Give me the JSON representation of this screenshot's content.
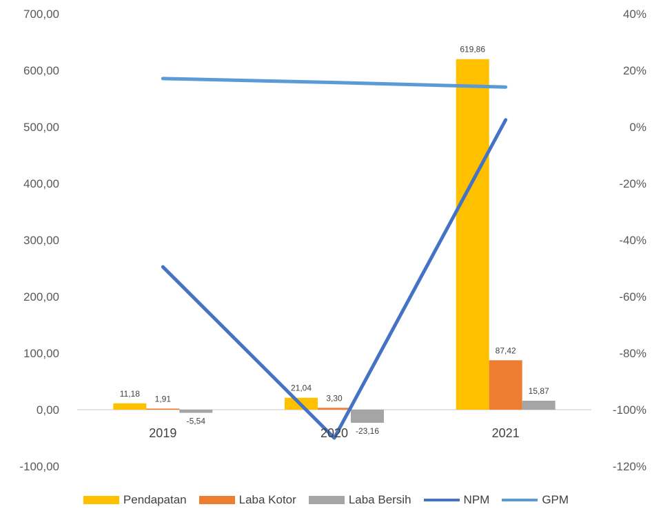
{
  "chart_data": {
    "type": "bar",
    "categories": [
      "2019",
      "2020",
      "2021"
    ],
    "series": [
      {
        "name": "Pendapatan",
        "kind": "bar",
        "axis": "left",
        "color": "#FFC000",
        "values": [
          11.18,
          21.04,
          619.86
        ],
        "labels": [
          "11,18",
          "21,04",
          "619,86"
        ]
      },
      {
        "name": "Laba Kotor",
        "kind": "bar",
        "axis": "left",
        "color": "#ED7D31",
        "values": [
          1.91,
          3.3,
          87.42
        ],
        "labels": [
          "1,91",
          "3,30",
          "87,42"
        ]
      },
      {
        "name": "Laba Bersih",
        "kind": "bar",
        "axis": "left",
        "color": "#A5A5A5",
        "values": [
          -5.54,
          -23.16,
          15.87
        ],
        "labels": [
          "-5,54",
          "-23,16",
          "15,87"
        ]
      },
      {
        "name": "NPM",
        "kind": "line",
        "axis": "right",
        "color": "#4472C4",
        "values": [
          -0.495,
          -1.1,
          0.025
        ]
      },
      {
        "name": "GPM",
        "kind": "line",
        "axis": "right",
        "color": "#5B9BD5",
        "values": [
          0.171,
          0.157,
          0.141
        ]
      }
    ],
    "y_left": {
      "min": -100,
      "max": 700,
      "step": 100,
      "tick_labels": [
        "700,00",
        "600,00",
        "500,00",
        "400,00",
        "300,00",
        "200,00",
        "100,00",
        "0,00",
        "-100,00"
      ]
    },
    "y_right": {
      "min": -1.2,
      "max": 0.4,
      "step": 0.2,
      "tick_labels": [
        "40%",
        "20%",
        "0%",
        "-20%",
        "-40%",
        "-60%",
        "-80%",
        "-100%",
        "-120%"
      ]
    },
    "grid": false,
    "legend": "bottom"
  }
}
